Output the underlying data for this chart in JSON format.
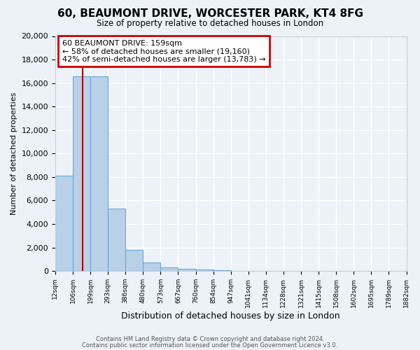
{
  "title": "60, BEAUMONT DRIVE, WORCESTER PARK, KT4 8FG",
  "subtitle": "Size of property relative to detached houses in London",
  "xlabel": "Distribution of detached houses by size in London",
  "ylabel": "Number of detached properties",
  "bar_color": "#b8d0e8",
  "bar_edge_color": "#6aaad4",
  "bar_heights": [
    8100,
    16600,
    16600,
    5300,
    1800,
    700,
    300,
    200,
    100,
    50,
    30,
    20,
    15,
    10,
    5,
    5,
    3,
    2,
    1,
    0
  ],
  "bin_labels": [
    "12sqm",
    "106sqm",
    "199sqm",
    "293sqm",
    "386sqm",
    "480sqm",
    "573sqm",
    "667sqm",
    "760sqm",
    "854sqm",
    "947sqm",
    "1041sqm",
    "1134sqm",
    "1228sqm",
    "1321sqm",
    "1415sqm",
    "1508sqm",
    "1602sqm",
    "1695sqm",
    "1789sqm",
    "1882sqm"
  ],
  "n_bins": 20,
  "property_bin_index": 1.56,
  "red_line_color": "#aa0000",
  "ylim": [
    0,
    20000
  ],
  "yticks": [
    0,
    2000,
    4000,
    6000,
    8000,
    10000,
    12000,
    14000,
    16000,
    18000,
    20000
  ],
  "annotation_title": "60 BEAUMONT DRIVE: 159sqm",
  "annotation_line1": "← 58% of detached houses are smaller (19,160)",
  "annotation_line2": "42% of semi-detached houses are larger (13,783) →",
  "footer1": "Contains HM Land Registry data © Crown copyright and database right 2024.",
  "footer2": "Contains public sector information licensed under the Open Government Licence v3.0.",
  "background_color": "#edf2f9",
  "grid_color": "#ffffff",
  "annotation_box_color": "#ffffff",
  "annotation_box_edge": "#cc0000"
}
